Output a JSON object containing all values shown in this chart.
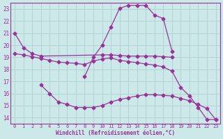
{
  "xlabel": "Windchill (Refroidissement éolien,°C)",
  "bg_color": "#cce8e8",
  "grid_color": "#b0d4d4",
  "line_color": "#993399",
  "x_ticks": [
    0,
    1,
    2,
    3,
    4,
    5,
    6,
    7,
    8,
    9,
    10,
    11,
    12,
    13,
    14,
    15,
    16,
    17,
    18,
    19,
    20,
    21,
    22,
    23
  ],
  "y_ticks": [
    14,
    15,
    16,
    17,
    18,
    19,
    20,
    21,
    22,
    23
  ],
  "xlim": [
    -0.5,
    23.5
  ],
  "ylim": [
    13.5,
    23.5
  ],
  "line1_x": [
    0,
    1,
    2,
    3,
    10,
    11,
    12,
    13,
    14,
    15,
    16,
    17,
    18
  ],
  "line1_y": [
    21.0,
    19.8,
    19.3,
    19.1,
    19.2,
    19.2,
    19.15,
    19.1,
    19.1,
    19.1,
    19.1,
    19.05,
    19.0
  ],
  "line2_x": [
    0,
    1,
    2,
    3,
    4,
    5,
    6,
    7,
    8,
    9,
    10,
    11,
    12,
    13,
    14,
    15,
    16,
    17,
    18,
    19,
    20,
    21,
    22,
    23
  ],
  "line2_y": [
    19.3,
    19.2,
    19.05,
    18.9,
    18.75,
    18.6,
    18.55,
    18.5,
    18.4,
    18.7,
    18.85,
    18.95,
    18.75,
    18.65,
    18.55,
    18.45,
    18.35,
    18.2,
    17.85,
    16.5,
    15.8,
    14.85,
    13.85,
    13.85
  ],
  "line3_x": [
    3,
    4,
    5,
    6,
    7,
    8,
    9,
    10,
    11,
    12,
    13,
    14,
    15,
    16,
    17,
    18,
    19,
    20,
    21,
    22,
    23
  ],
  "line3_y": [
    16.7,
    16.0,
    15.3,
    15.1,
    14.85,
    14.85,
    14.85,
    15.0,
    15.3,
    15.5,
    15.65,
    15.8,
    15.9,
    15.9,
    15.85,
    15.8,
    15.6,
    15.4,
    15.1,
    14.75,
    13.85
  ],
  "line4_x": [
    8,
    9,
    10,
    11,
    12,
    13,
    14,
    15,
    16,
    17,
    18
  ],
  "line4_y": [
    17.4,
    19.0,
    20.0,
    21.5,
    23.05,
    23.3,
    23.3,
    23.3,
    22.5,
    22.2,
    19.5
  ]
}
